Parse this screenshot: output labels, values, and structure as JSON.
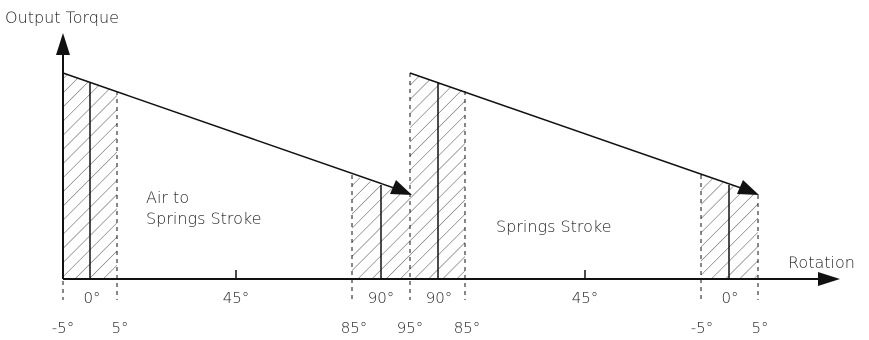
{
  "axes": {
    "y_label": "Output Torque",
    "x_label": "Rotation"
  },
  "strokes": [
    {
      "label_lines": [
        "Air to",
        "Springs Stroke"
      ],
      "tick_labels": {
        "start_minus": "-5°",
        "start_zero": "0°",
        "start_plus": "5°",
        "middle": "45°",
        "end_inner": "85°",
        "end_main": "90°"
      }
    },
    {
      "label_lines": [
        "Springs Stroke"
      ],
      "tick_labels": {
        "start_outer": "95°",
        "start_main": "90°",
        "start_inner": "85°",
        "middle": "45°",
        "end_minus": "-5°",
        "end_zero": "0°",
        "end_plus": "5°"
      }
    }
  ],
  "colors": {
    "line": "#111111",
    "hatch": "#555555"
  }
}
